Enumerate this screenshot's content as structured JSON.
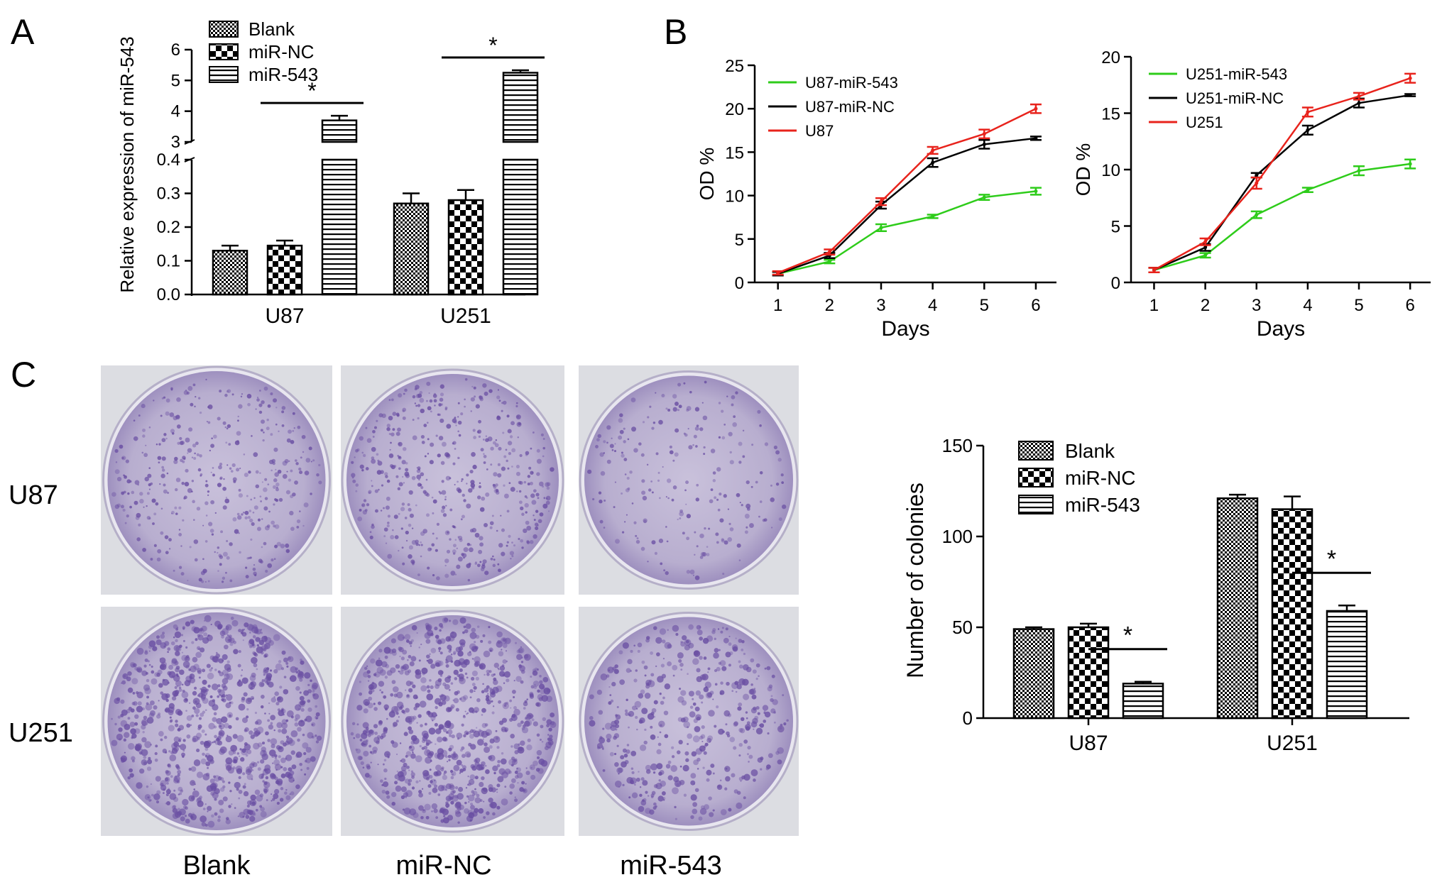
{
  "panels": {
    "A": "A",
    "B": "B",
    "C": "C"
  },
  "patterns": {
    "Blank": "checker-fine",
    "miR-NC": "checker-coarse",
    "miR-543": "horizontal-stripes"
  },
  "photos": {
    "rows": [
      "U87",
      "U251"
    ],
    "columns": [
      "Blank",
      "miR-NC",
      "miR-543"
    ],
    "plate_color": "#6a4fa3",
    "description_colony_density": {
      "U87": [
        0.45,
        0.55,
        0.25
      ],
      "U251": [
        1.0,
        0.95,
        0.5
      ]
    }
  },
  "chart_data": [
    {
      "id": "A",
      "type": "bar",
      "ylabel": "Relative expression of miR-543",
      "categories": [
        "U87",
        "U251"
      ],
      "series": [
        {
          "name": "Blank",
          "values": [
            0.13,
            0.27
          ],
          "errors": [
            0.015,
            0.03
          ]
        },
        {
          "name": "miR-NC",
          "values": [
            0.145,
            0.28
          ],
          "errors": [
            0.015,
            0.03
          ]
        },
        {
          "name": "miR-543",
          "values": [
            3.7,
            5.25
          ],
          "errors": [
            0.15,
            0.08
          ]
        }
      ],
      "axis_break": {
        "lower_range": [
          0,
          0.4
        ],
        "upper_range": [
          3,
          6
        ]
      },
      "lower_ticks": [
        "0.0",
        "0.1",
        "0.2",
        "0.3",
        "0.4"
      ],
      "upper_ticks": [
        "3",
        "4",
        "5",
        "6"
      ],
      "significance": [
        "*",
        "*"
      ],
      "legend_position": "top-left"
    },
    {
      "id": "B-left",
      "type": "line",
      "xlabel": "Days",
      "ylabel": "OD %",
      "x": [
        1,
        2,
        3,
        4,
        5,
        6
      ],
      "ylim": [
        0,
        25
      ],
      "yticks": [
        0,
        5,
        10,
        15,
        20,
        25
      ],
      "series": [
        {
          "name": "U87-miR-543",
          "color": "#2ecc1a",
          "values": [
            1.0,
            2.4,
            6.3,
            7.6,
            9.8,
            10.5
          ],
          "errors": [
            0.2,
            0.2,
            0.4,
            0.2,
            0.3,
            0.4
          ]
        },
        {
          "name": "U87-miR-NC",
          "color": "#000000",
          "values": [
            1.0,
            3.1,
            8.9,
            13.8,
            15.9,
            16.6
          ],
          "errors": [
            0.2,
            0.3,
            0.4,
            0.5,
            0.5,
            0.2
          ]
        },
        {
          "name": "U87",
          "color": "#e8231c",
          "values": [
            1.1,
            3.5,
            9.3,
            15.2,
            17.1,
            20.0
          ],
          "errors": [
            0.2,
            0.3,
            0.4,
            0.4,
            0.5,
            0.5
          ]
        }
      ],
      "legend_position": "top-left"
    },
    {
      "id": "B-right",
      "type": "line",
      "xlabel": "Days",
      "ylabel": "OD %",
      "x": [
        1,
        2,
        3,
        4,
        5,
        6
      ],
      "ylim": [
        0,
        20
      ],
      "yticks": [
        0,
        5,
        10,
        15,
        20
      ],
      "series": [
        {
          "name": "U251-miR-543",
          "color": "#2ecc1a",
          "values": [
            1.1,
            2.4,
            6.0,
            8.2,
            9.9,
            10.5
          ],
          "errors": [
            0.2,
            0.2,
            0.3,
            0.2,
            0.4,
            0.4
          ]
        },
        {
          "name": "U251-miR-NC",
          "color": "#000000",
          "values": [
            1.1,
            3.1,
            9.5,
            13.5,
            15.9,
            16.6
          ],
          "errors": [
            0.2,
            0.3,
            0.2,
            0.4,
            0.4,
            0.1
          ]
        },
        {
          "name": "U251",
          "color": "#e8231c",
          "values": [
            1.1,
            3.6,
            8.8,
            15.1,
            16.5,
            18.1
          ],
          "errors": [
            0.2,
            0.3,
            0.5,
            0.4,
            0.3,
            0.4
          ]
        }
      ],
      "legend_position": "top-left"
    },
    {
      "id": "C",
      "type": "bar",
      "ylabel": "Number of colonies",
      "categories": [
        "U87",
        "U251"
      ],
      "ylim": [
        0,
        150
      ],
      "yticks": [
        0,
        50,
        100,
        150
      ],
      "series": [
        {
          "name": "Blank",
          "values": [
            49,
            121
          ],
          "errors": [
            1,
            2
          ]
        },
        {
          "name": "miR-NC",
          "values": [
            50,
            115
          ],
          "errors": [
            2,
            7
          ]
        },
        {
          "name": "miR-543",
          "values": [
            19,
            59
          ],
          "errors": [
            1,
            3
          ]
        }
      ],
      "significance": [
        "*",
        "*"
      ],
      "legend_position": "top-left"
    }
  ]
}
